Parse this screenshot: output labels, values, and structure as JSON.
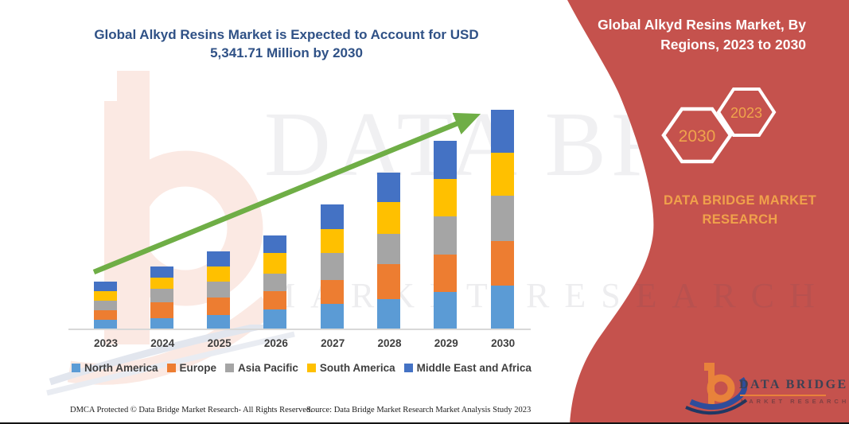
{
  "page": {
    "title": "Global Alkyd Resins Market is Expected to Account for USD 5,341.71 Million by 2030",
    "footer": {
      "dmca": "DMCA Protected © Data Bridge Market Research-  All Rights Reserved.",
      "source": "Source: Data Bridge Market Research  Market Analysis Study 2023"
    }
  },
  "sidebar": {
    "title": "Global Alkyd Resins Market, By Regions, 2023 to 2030",
    "hexagon_left_year": "2030",
    "hexagon_right_year": "2023",
    "brand_line1": "DATA BRIDGE MARKET",
    "brand_line2": "RESEARCH",
    "colors": {
      "background": "#C5524D",
      "accent_orange": "#F0A14B",
      "hexagon_stroke": "#FFFFFF"
    }
  },
  "logo": {
    "name": "DATA BRIDGE",
    "subtitle": "MARKET RESEARCH",
    "colors": {
      "b_orange": "#E8823B",
      "swoosh_blue": "#2E4D9B",
      "swoosh_navy": "#203864"
    }
  },
  "watermark": {
    "big_text": "DATA BRIDGE",
    "spaced_text": "MARKET RESEARCH"
  },
  "chart_data": {
    "type": "bar",
    "stacked": true,
    "title": "Global Alkyd Resins Market is Expected to Account for USD 5,341.71 Million by 2030",
    "unit": "USD Million",
    "highlight_value_2030_total": "5,341.71",
    "categories": [
      "2023",
      "2024",
      "2025",
      "2026",
      "2027",
      "2028",
      "2029",
      "2030"
    ],
    "series": [
      {
        "name": "North America",
        "color": "#5B9BD5",
        "values": [
          232,
          281,
          358,
          484,
          629,
          728,
          902,
          1064
        ]
      },
      {
        "name": "Europe",
        "color": "#ED7D31",
        "values": [
          242,
          387,
          416,
          455,
          581,
          852,
          917,
          1076
        ]
      },
      {
        "name": "Asia Pacific",
        "color": "#A5A5A5",
        "values": [
          223,
          319,
          387,
          416,
          658,
          743,
          921,
          1117
        ]
      },
      {
        "name": "South America",
        "color": "#FFC000",
        "values": [
          232,
          271,
          368,
          513,
          581,
          774,
          917,
          1032
        ]
      },
      {
        "name": "Middle East and Africa",
        "color": "#4472C4",
        "values": [
          232,
          271,
          377,
          426,
          600,
          722,
          935,
          1053
        ]
      }
    ],
    "totals": [
      1161,
      1529,
      1906,
      2294,
      3049,
      3819,
      4592,
      5342
    ],
    "annotations": [
      "upward green trend arrow across bar tops"
    ],
    "legend_position": "bottom",
    "axis": {
      "x_labels_visible": true,
      "y_axis_visible": false,
      "gridlines": false
    },
    "arrow_color": "#6FAE46"
  }
}
